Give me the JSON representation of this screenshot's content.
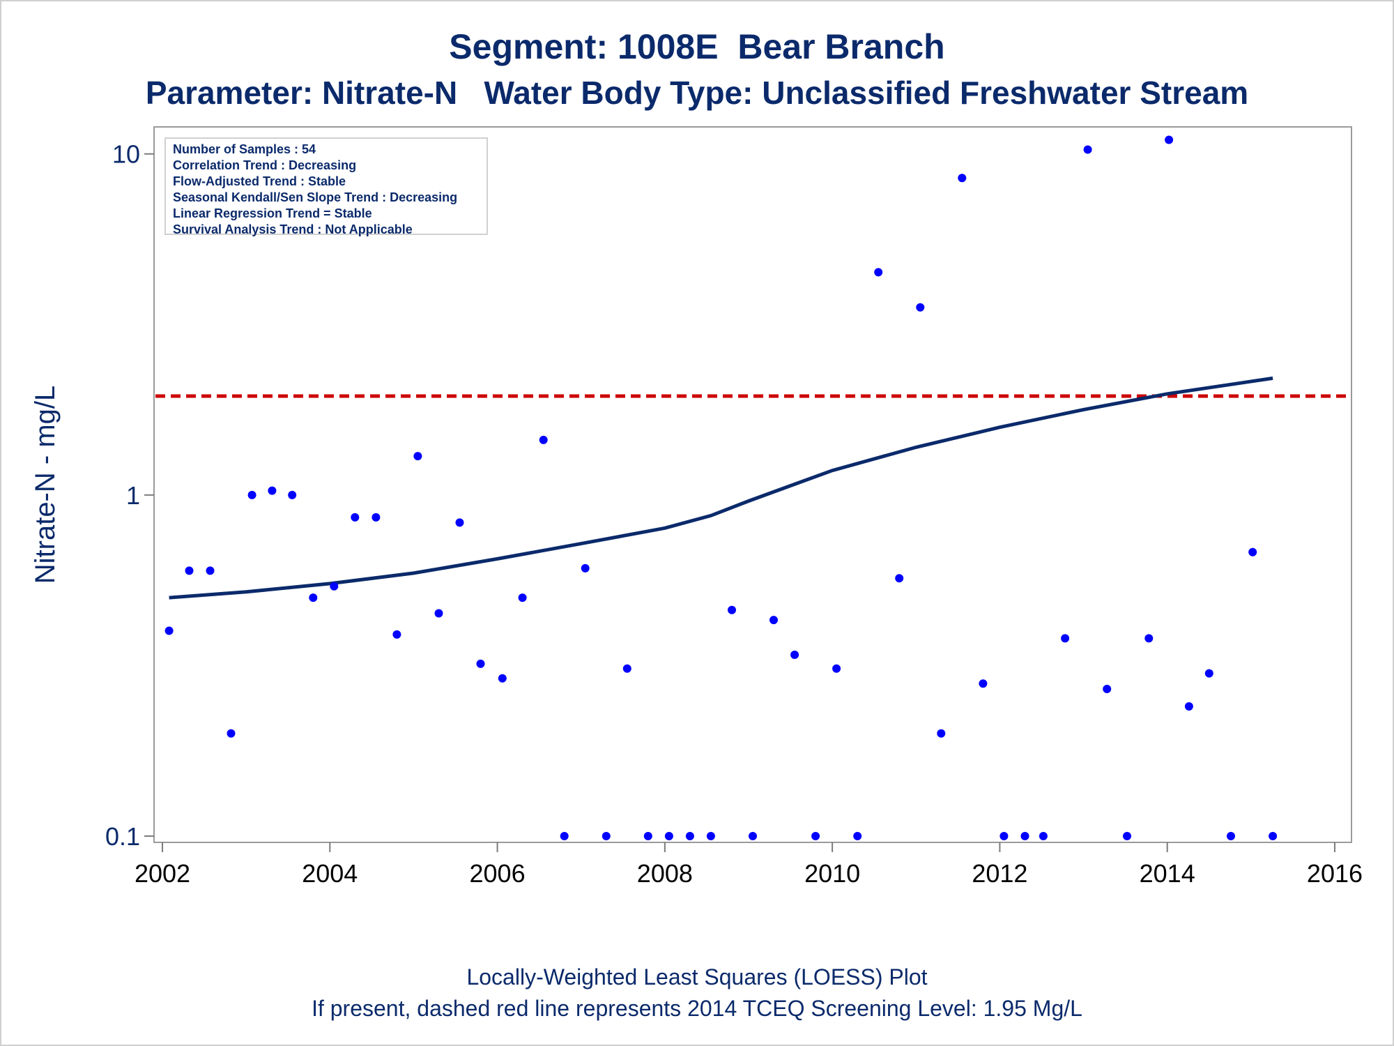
{
  "title": "Segment: 1008E  Bear Branch",
  "subtitle": "Parameter: Nitrate-N   Water Body Type: Unclassified Freshwater Stream",
  "footer": {
    "line1": "Locally-Weighted Least Squares (LOESS) Plot",
    "line2": "If present, dashed red line represents 2014 TCEQ Screening Level: 1.95 Mg/L"
  },
  "inset": {
    "lines": [
      "Number of Samples : 54",
      "Correlation Trend : Decreasing",
      "Flow-Adjusted Trend : Stable",
      "Seasonal Kendall/Sen Slope Trend : Decreasing",
      "Linear Regression Trend = Stable",
      "Survival Analysis Trend : Not Applicable"
    ]
  },
  "colors": {
    "points": "#0000ff",
    "loess": "#0b2a6b",
    "screening": "#cc0000",
    "text": "#0b2a6b"
  },
  "chart_data": {
    "type": "scatter",
    "ylabel": "Nitrate-N - mg/L",
    "xlabel": "",
    "xlim": [
      2001.9,
      2016.2
    ],
    "ylim": [
      0.1,
      12.0
    ],
    "y_scale": "log",
    "x_ticks": [
      "2002",
      "2004",
      "2006",
      "2008",
      "2010",
      "2012",
      "2014",
      "2016"
    ],
    "y_ticks": [
      "0.1",
      "1",
      "10"
    ],
    "grid": false,
    "screening_level": 1.95,
    "series": [
      {
        "type": "scatter",
        "points": [
          [
            2002.08,
            0.4
          ],
          [
            2002.32,
            0.6
          ],
          [
            2002.57,
            0.6
          ],
          [
            2002.82,
            0.2
          ],
          [
            2003.07,
            1.0
          ],
          [
            2003.31,
            1.03
          ],
          [
            2003.55,
            1.0
          ],
          [
            2003.8,
            0.5
          ],
          [
            2004.05,
            0.54
          ],
          [
            2004.3,
            0.86
          ],
          [
            2004.55,
            0.86
          ],
          [
            2004.8,
            0.39
          ],
          [
            2005.05,
            1.3
          ],
          [
            2005.3,
            0.45
          ],
          [
            2005.55,
            0.83
          ],
          [
            2005.8,
            0.32
          ],
          [
            2006.06,
            0.29
          ],
          [
            2006.3,
            0.5
          ],
          [
            2006.55,
            1.45
          ],
          [
            2006.8,
            0.1
          ],
          [
            2007.05,
            0.61
          ],
          [
            2007.3,
            0.1
          ],
          [
            2007.55,
            0.31
          ],
          [
            2007.8,
            0.1
          ],
          [
            2008.05,
            0.1
          ],
          [
            2008.3,
            0.1
          ],
          [
            2008.55,
            0.1
          ],
          [
            2008.8,
            0.46
          ],
          [
            2009.05,
            0.1
          ],
          [
            2009.3,
            0.43
          ],
          [
            2009.55,
            0.34
          ],
          [
            2009.8,
            0.1
          ],
          [
            2010.05,
            0.31
          ],
          [
            2010.3,
            0.1
          ],
          [
            2010.55,
            4.5
          ],
          [
            2010.8,
            0.57
          ],
          [
            2011.05,
            3.55
          ],
          [
            2011.3,
            0.2
          ],
          [
            2011.55,
            8.5
          ],
          [
            2011.8,
            0.28
          ],
          [
            2012.05,
            0.1
          ],
          [
            2012.3,
            0.1
          ],
          [
            2012.52,
            0.1
          ],
          [
            2012.78,
            0.38
          ],
          [
            2013.05,
            10.3
          ],
          [
            2013.28,
            0.27
          ],
          [
            2013.52,
            0.1
          ],
          [
            2013.78,
            0.38
          ],
          [
            2014.02,
            11.0
          ],
          [
            2014.26,
            0.24
          ],
          [
            2014.5,
            0.3
          ],
          [
            2014.76,
            0.1
          ],
          [
            2015.02,
            0.68
          ],
          [
            2015.26,
            0.1
          ]
        ]
      },
      {
        "type": "line",
        "points": [
          [
            2002.08,
            0.5
          ],
          [
            2003.0,
            0.52
          ],
          [
            2004.0,
            0.55
          ],
          [
            2005.0,
            0.59
          ],
          [
            2006.0,
            0.65
          ],
          [
            2007.0,
            0.72
          ],
          [
            2008.0,
            0.8
          ],
          [
            2008.55,
            0.87
          ],
          [
            2009.0,
            0.96
          ],
          [
            2010.0,
            1.18
          ],
          [
            2011.0,
            1.38
          ],
          [
            2012.0,
            1.58
          ],
          [
            2013.0,
            1.78
          ],
          [
            2014.0,
            1.98
          ],
          [
            2015.26,
            2.2
          ]
        ]
      }
    ]
  }
}
